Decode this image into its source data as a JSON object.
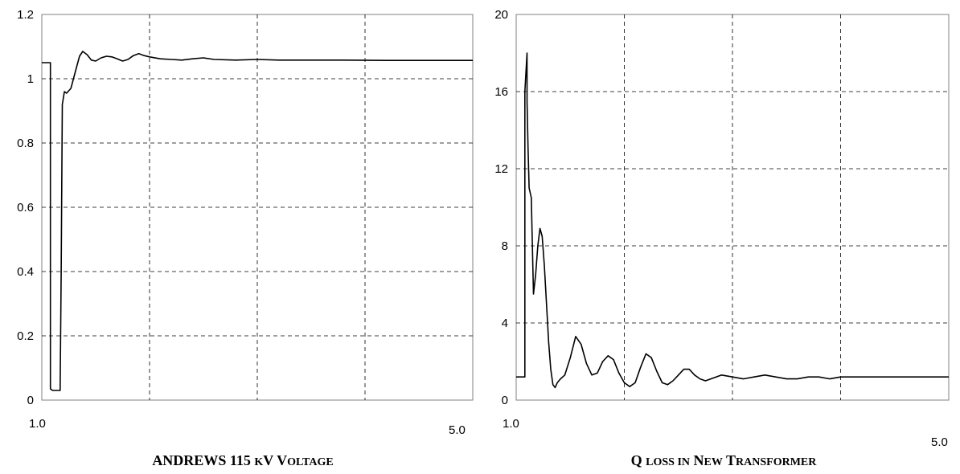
{
  "chart_data": [
    {
      "type": "line",
      "title": "Andrews 115 kV Voltage",
      "xlabel": "",
      "ylabel": "",
      "xlim": [
        1.0,
        5.0
      ],
      "ylim": [
        0,
        1.2
      ],
      "x_tick_labels": [
        "1.0",
        "5.0"
      ],
      "y_ticks": [
        0,
        0.2,
        0.4,
        0.6,
        0.8,
        1,
        1.2
      ],
      "y_tick_labels": [
        "0",
        "0.2",
        "0.4",
        "0.6",
        "0.8",
        "1",
        "1.2"
      ],
      "grid": true,
      "series": [
        {
          "x": [
            1.0,
            1.08,
            1.08,
            1.1,
            1.13,
            1.17,
            1.18,
            1.19,
            1.21,
            1.23,
            1.27,
            1.31,
            1.35,
            1.38,
            1.42,
            1.46,
            1.5,
            1.55,
            1.6,
            1.65,
            1.7,
            1.75,
            1.8,
            1.85,
            1.9,
            1.95,
            2.0,
            2.1,
            2.2,
            2.3,
            2.4,
            2.5,
            2.6,
            2.8,
            3.0,
            3.2,
            3.5,
            3.8,
            4.2,
            4.6,
            5.0
          ],
          "y": [
            1.05,
            1.05,
            0.035,
            0.03,
            0.03,
            0.03,
            0.4,
            0.92,
            0.96,
            0.955,
            0.97,
            1.02,
            1.07,
            1.085,
            1.075,
            1.058,
            1.055,
            1.065,
            1.07,
            1.068,
            1.062,
            1.055,
            1.06,
            1.072,
            1.078,
            1.072,
            1.068,
            1.062,
            1.06,
            1.058,
            1.062,
            1.065,
            1.06,
            1.058,
            1.06,
            1.058,
            1.058,
            1.058,
            1.057,
            1.057,
            1.057
          ]
        }
      ]
    },
    {
      "type": "line",
      "title": "Q loss in New Transformer",
      "xlabel": "",
      "ylabel": "",
      "xlim": [
        1.0,
        5.0
      ],
      "ylim": [
        0,
        20
      ],
      "x_tick_labels": [
        "1.0",
        "5.0"
      ],
      "y_ticks": [
        0,
        4,
        8,
        12,
        16,
        20
      ],
      "y_tick_labels": [
        "0",
        "4",
        "8",
        "12",
        "16",
        "20"
      ],
      "grid": true,
      "series": [
        {
          "x": [
            1.0,
            1.08,
            1.08,
            1.1,
            1.1,
            1.11,
            1.12,
            1.14,
            1.16,
            1.18,
            1.2,
            1.22,
            1.24,
            1.26,
            1.28,
            1.3,
            1.32,
            1.34,
            1.36,
            1.38,
            1.41,
            1.45,
            1.5,
            1.55,
            1.6,
            1.65,
            1.7,
            1.75,
            1.8,
            1.85,
            1.9,
            1.95,
            2.0,
            2.05,
            2.1,
            2.15,
            2.2,
            2.25,
            2.3,
            2.35,
            2.4,
            2.45,
            2.5,
            2.55,
            2.6,
            2.65,
            2.7,
            2.75,
            2.8,
            2.9,
            3.0,
            3.1,
            3.2,
            3.3,
            3.4,
            3.5,
            3.6,
            3.7,
            3.8,
            3.9,
            4.0,
            4.2,
            4.4,
            4.6,
            4.8,
            5.0
          ],
          "y": [
            1.2,
            1.2,
            16.0,
            18.0,
            15.5,
            13.0,
            11.0,
            10.5,
            5.5,
            6.5,
            8.0,
            8.9,
            8.5,
            7.0,
            5.0,
            3.0,
            1.6,
            0.8,
            0.65,
            0.9,
            1.1,
            1.3,
            2.2,
            3.3,
            2.9,
            1.9,
            1.3,
            1.4,
            2.0,
            2.3,
            2.1,
            1.4,
            0.9,
            0.7,
            0.9,
            1.7,
            2.4,
            2.2,
            1.5,
            0.9,
            0.8,
            1.0,
            1.3,
            1.6,
            1.6,
            1.3,
            1.1,
            1.0,
            1.1,
            1.3,
            1.2,
            1.1,
            1.2,
            1.3,
            1.2,
            1.1,
            1.1,
            1.2,
            1.2,
            1.1,
            1.2,
            1.2,
            1.2,
            1.2,
            1.2,
            1.2
          ]
        }
      ]
    }
  ]
}
